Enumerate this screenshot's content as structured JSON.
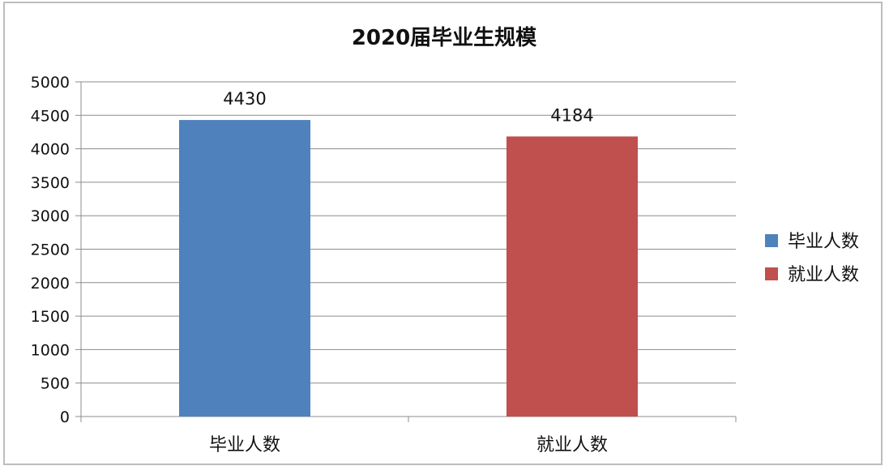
{
  "chart_data": {
    "type": "bar",
    "title": "2020届毕业生规模",
    "categories": [
      "毕业人数",
      "就业人数"
    ],
    "values": [
      4430,
      4184
    ],
    "bar_colors": [
      "#4f81bd",
      "#c0504d"
    ],
    "ylim": [
      0,
      5000
    ],
    "yticks": [
      0,
      500,
      1000,
      1500,
      2000,
      2500,
      3000,
      3500,
      4000,
      4500,
      5000
    ],
    "grid": true,
    "legend_position": "right",
    "legend": [
      {
        "label": "毕业人数",
        "color": "#4f81bd"
      },
      {
        "label": "就业人数",
        "color": "#c0504d"
      }
    ]
  }
}
